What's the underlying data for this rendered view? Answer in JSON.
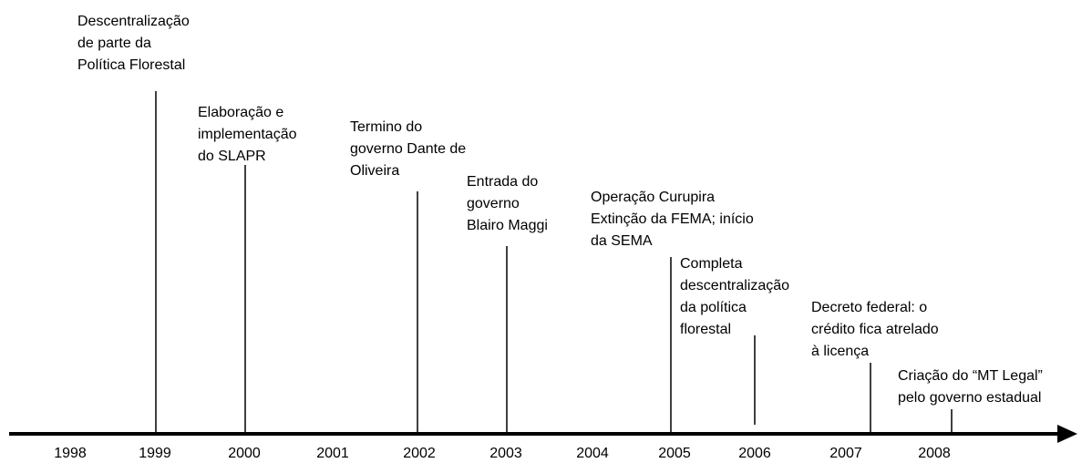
{
  "timeline": {
    "years": [
      "1998",
      "1999",
      "2000",
      "2001",
      "2002",
      "2003",
      "2004",
      "2005",
      "2006",
      "2007",
      "2008"
    ],
    "events": [
      {
        "lines": [
          "Descentralização",
          "de parte da",
          "Política Florestal"
        ]
      },
      {
        "lines": [
          "Elaboração e",
          "implementação",
          "do SLAPR"
        ]
      },
      {
        "lines": [
          "Termino do",
          "governo Dante de",
          "Oliveira"
        ]
      },
      {
        "lines": [
          "Entrada do",
          "governo",
          "Blairo Maggi"
        ]
      },
      {
        "lines": [
          "Operação Curupira",
          "Extinção da FEMA; início",
          "da SEMA"
        ]
      },
      {
        "lines": [
          "Completa",
          "descentralização",
          "da política",
          "florestal"
        ]
      },
      {
        "lines": [
          "Decreto federal: o",
          "crédito fica atrelado",
          "à licença"
        ]
      },
      {
        "lines": [
          "Criação do “MT Legal”",
          "pelo governo estadual"
        ]
      }
    ]
  }
}
